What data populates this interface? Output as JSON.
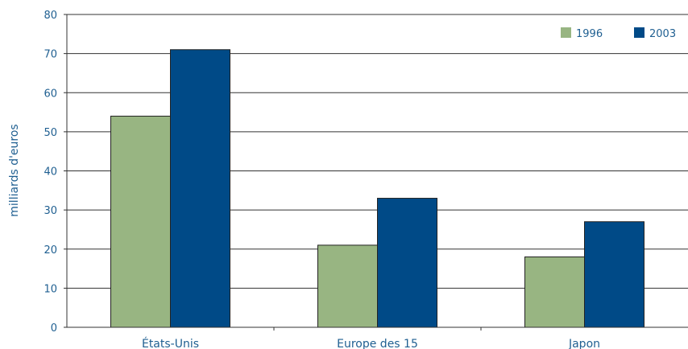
{
  "chart_data": {
    "type": "bar",
    "categories": [
      "États-Unis",
      "Europe des 15",
      "Japon"
    ],
    "series": [
      {
        "name": "1996",
        "values": [
          54,
          21,
          18
        ]
      },
      {
        "name": "2003",
        "values": [
          71,
          33,
          27
        ]
      }
    ],
    "title": "",
    "xlabel": "",
    "ylabel": "milliards d'euros",
    "ylim": [
      0,
      80
    ],
    "yticks": [
      0,
      10,
      20,
      30,
      40,
      50,
      60,
      70,
      80
    ],
    "grid": true,
    "legend_position": "top-right",
    "colors": {
      "series": [
        "#98b582",
        "#004a87"
      ],
      "text": "#1f5f91",
      "axis": "#333333"
    }
  }
}
